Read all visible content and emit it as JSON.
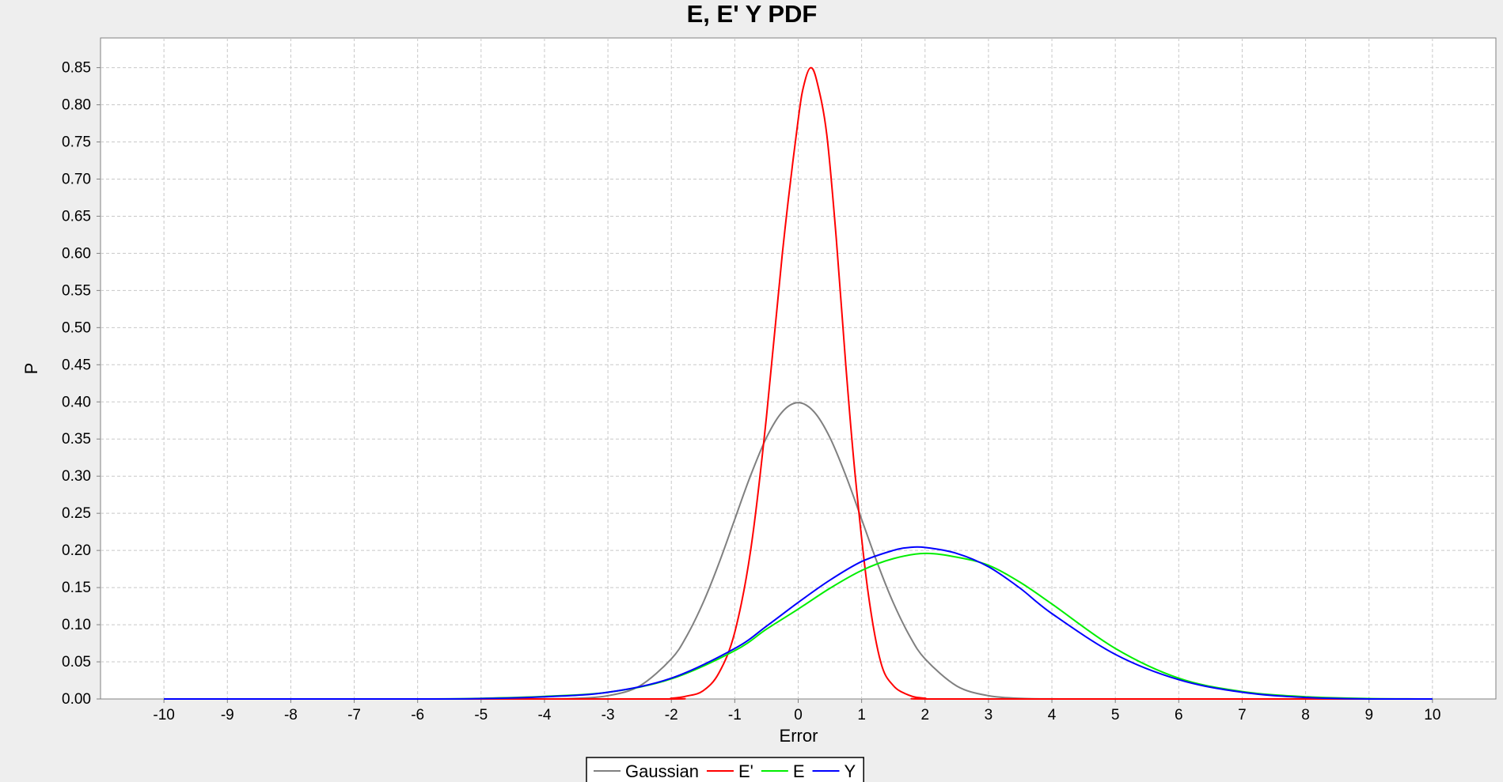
{
  "chart_data": {
    "type": "line",
    "title": "E, E' Y PDF",
    "xlabel": "Error",
    "ylabel": "P",
    "xlim": [
      -11,
      11
    ],
    "ylim": [
      0,
      0.89
    ],
    "xticks": [
      "-10",
      "-9",
      "-8",
      "-7",
      "-6",
      "-5",
      "-4",
      "-3",
      "-2",
      "-1",
      "0",
      "1",
      "2",
      "3",
      "4",
      "5",
      "6",
      "7",
      "8",
      "9",
      "10"
    ],
    "yticks": [
      "0.00",
      "0.05",
      "0.10",
      "0.15",
      "0.20",
      "0.25",
      "0.30",
      "0.35",
      "0.40",
      "0.45",
      "0.50",
      "0.55",
      "0.60",
      "0.65",
      "0.70",
      "0.75",
      "0.80",
      "0.85"
    ],
    "grid": true,
    "legend_position": "bottom",
    "series": [
      {
        "name": "Gaussian",
        "color": "#808080",
        "x": [
          -10,
          -5,
          -4,
          -3.5,
          -3,
          -2.5,
          -2,
          -1.75,
          -1.5,
          -1.25,
          -1,
          -0.75,
          -0.5,
          -0.25,
          0,
          0.25,
          0.5,
          0.75,
          1,
          1.25,
          1.5,
          1.75,
          2,
          2.5,
          3,
          3.5,
          4,
          5,
          10
        ],
        "y": [
          0,
          0,
          0.0001,
          0.0009,
          0.0044,
          0.0175,
          0.054,
          0.086,
          0.1295,
          0.1826,
          0.242,
          0.301,
          0.352,
          0.3867,
          0.3989,
          0.3867,
          0.352,
          0.301,
          0.242,
          0.1826,
          0.1295,
          0.086,
          0.054,
          0.0175,
          0.0044,
          0.0009,
          0.0001,
          0,
          0
        ]
      },
      {
        "name": "E'",
        "color": "#ff0000",
        "x": [
          -10,
          -2.5,
          -2,
          -1.75,
          -1.5,
          -1.25,
          -1,
          -0.75,
          -0.5,
          -0.25,
          0,
          0.1,
          0.2,
          0.3,
          0.45,
          0.6,
          0.75,
          0.9,
          1.1,
          1.3,
          1.5,
          1.75,
          2,
          2.5,
          10
        ],
        "y": [
          0,
          0,
          0.001,
          0.004,
          0.011,
          0.035,
          0.09,
          0.2,
          0.38,
          0.6,
          0.78,
          0.83,
          0.85,
          0.83,
          0.76,
          0.62,
          0.45,
          0.3,
          0.145,
          0.05,
          0.018,
          0.005,
          0.001,
          0,
          0
        ]
      },
      {
        "name": "E",
        "color": "#00ee00",
        "x": [
          -10,
          -6,
          -5,
          -4,
          -3,
          -2,
          -1,
          -0.5,
          0,
          0.5,
          1,
          1.5,
          2,
          2.5,
          3,
          3.5,
          4,
          5,
          6,
          7,
          8,
          9,
          10
        ],
        "y": [
          0,
          0,
          0.0009,
          0.0035,
          0.009,
          0.027,
          0.065,
          0.094,
          0.121,
          0.149,
          0.173,
          0.189,
          0.196,
          0.191,
          0.18,
          0.157,
          0.128,
          0.068,
          0.028,
          0.01,
          0.003,
          0.0005,
          0
        ]
      },
      {
        "name": "Y",
        "color": "#0000ff",
        "x": [
          -10,
          -6,
          -5,
          -4,
          -3,
          -2,
          -1,
          -0.5,
          0,
          0.5,
          1,
          1.5,
          1.75,
          2,
          2.5,
          3,
          3.5,
          4,
          5,
          6,
          7,
          8,
          9,
          10
        ],
        "y": [
          0,
          0,
          0.0005,
          0.003,
          0.009,
          0.028,
          0.068,
          0.098,
          0.13,
          0.16,
          0.185,
          0.2,
          0.204,
          0.204,
          0.196,
          0.178,
          0.149,
          0.115,
          0.06,
          0.026,
          0.009,
          0.002,
          0,
          0
        ]
      }
    ]
  }
}
